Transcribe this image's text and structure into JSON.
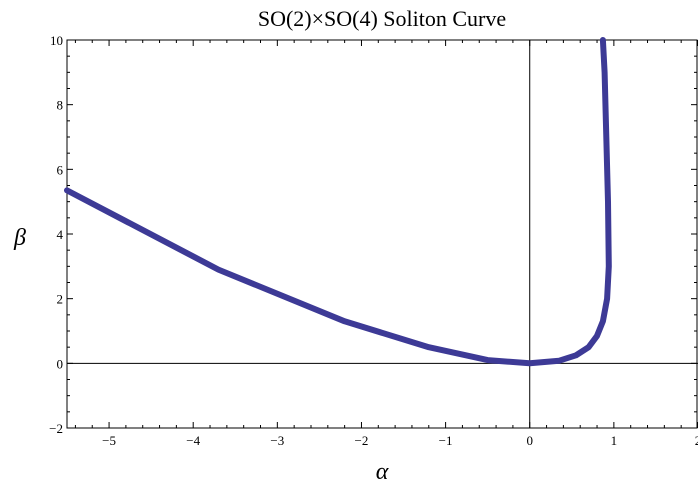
{
  "chart_data": {
    "type": "line",
    "title": "SO(2)×SO(4) Soliton Curve",
    "xlabel": "α",
    "ylabel": "β",
    "xlim": [
      -5.5,
      2
    ],
    "ylim": [
      -2,
      10
    ],
    "x_ticks": [
      -5,
      -4,
      -3,
      -2,
      -1,
      0,
      1,
      2
    ],
    "y_ticks": [
      -2,
      0,
      2,
      4,
      6,
      8,
      10
    ],
    "x_tick_labels": [
      "−5",
      "−4",
      "−3",
      "−2",
      "−1",
      "0",
      "1",
      "2"
    ],
    "y_tick_labels": [
      "−2",
      "0",
      "2",
      "4",
      "6",
      "8",
      "10"
    ],
    "grid": false,
    "series": [
      {
        "color": "#3d3a96",
        "x": [
          -5.5,
          -3.7,
          -2.2,
          -1.2,
          -0.5,
          0.0,
          0.35,
          0.55,
          0.7,
          0.8,
          0.87,
          0.92,
          0.94,
          0.93,
          0.91,
          0.89,
          0.87
        ],
        "y": [
          5.35,
          2.9,
          1.3,
          0.5,
          0.1,
          0.0,
          0.08,
          0.25,
          0.5,
          0.85,
          1.3,
          2.0,
          3.0,
          5.0,
          7.0,
          9.0,
          10.0
        ]
      }
    ]
  }
}
